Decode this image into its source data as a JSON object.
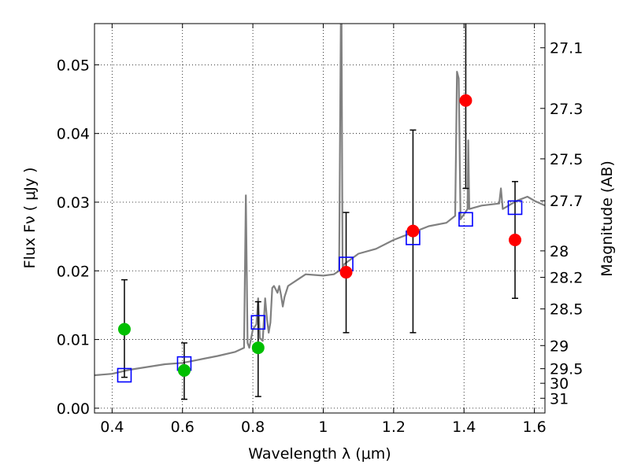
{
  "chart_data": {
    "type": "scatter",
    "xlabel": "Wavelength  λ (μm)",
    "ylabel": "Flux  Fν  ( μJy )",
    "ylabel_right": "Magnitude (AB)",
    "xlim": [
      0.35,
      1.63
    ],
    "ylim": [
      -0.0007,
      0.056
    ],
    "grid": true,
    "x_ticks": [
      0.4,
      0.6,
      0.8,
      1.0,
      1.2,
      1.4,
      1.6
    ],
    "x_tick_labels": [
      "0.4",
      "0.6",
      "0.8",
      "1",
      "1.2",
      "1.4",
      "1.6"
    ],
    "y_ticks": [
      0.0,
      0.01,
      0.02,
      0.03,
      0.04,
      0.05
    ],
    "y_tick_labels": [
      "0.00",
      "0.01",
      "0.02",
      "0.03",
      "0.04",
      "0.05"
    ],
    "right_ticks": [
      27.1,
      27.3,
      27.5,
      27.7,
      28,
      28.2,
      28.5,
      29,
      29.5,
      30,
      31
    ],
    "right_tick_labels": [
      "27.1",
      "27.3",
      "27.5",
      "27.7",
      "28",
      "28.2",
      "28.5",
      "29",
      "29.5",
      "30",
      "31"
    ],
    "series": [
      {
        "name": "model spectrum",
        "kind": "line",
        "color": "#808080",
        "x": [
          0.35,
          0.4,
          0.45,
          0.5,
          0.55,
          0.6,
          0.65,
          0.7,
          0.75,
          0.775,
          0.78,
          0.785,
          0.79,
          0.8,
          0.81,
          0.815,
          0.82,
          0.828,
          0.835,
          0.84,
          0.845,
          0.85,
          0.855,
          0.86,
          0.87,
          0.875,
          0.88,
          0.885,
          0.89,
          0.9,
          0.95,
          1.0,
          1.03,
          1.045,
          1.05,
          1.052,
          1.055,
          1.06,
          1.1,
          1.15,
          1.2,
          1.25,
          1.3,
          1.35,
          1.375,
          1.38,
          1.385,
          1.39,
          1.41,
          1.412,
          1.415,
          1.45,
          1.5,
          1.505,
          1.51,
          1.55,
          1.58,
          1.6,
          1.63
        ],
        "y": [
          0.0048,
          0.005,
          0.0056,
          0.006,
          0.0064,
          0.0066,
          0.0071,
          0.0076,
          0.0082,
          0.0088,
          0.031,
          0.0095,
          0.0088,
          0.0115,
          0.0122,
          0.016,
          0.0102,
          0.0098,
          0.016,
          0.013,
          0.011,
          0.0125,
          0.0175,
          0.0178,
          0.0168,
          0.0178,
          0.0165,
          0.0148,
          0.0162,
          0.0178,
          0.0195,
          0.0193,
          0.0195,
          0.02,
          0.056,
          0.056,
          0.0205,
          0.021,
          0.0225,
          0.0232,
          0.0245,
          0.0255,
          0.0265,
          0.027,
          0.028,
          0.049,
          0.048,
          0.0275,
          0.029,
          0.039,
          0.029,
          0.0295,
          0.0298,
          0.032,
          0.029,
          0.0302,
          0.0308,
          0.0302,
          0.0295
        ]
      },
      {
        "name": "green observations",
        "kind": "errorbar",
        "color": "#00bf00",
        "x": [
          0.435,
          0.605,
          0.815
        ],
        "y": [
          0.0115,
          0.0055,
          0.0088
        ],
        "yerr_low": [
          0.0045,
          0.0013,
          0.0017
        ],
        "yerr_high": [
          0.0187,
          0.0095,
          0.0155
        ]
      },
      {
        "name": "red observations",
        "kind": "errorbar",
        "color": "#ff0000",
        "x": [
          1.065,
          1.255,
          1.405,
          1.545
        ],
        "y": [
          0.0198,
          0.0258,
          0.0448,
          0.0245
        ],
        "yerr_low": [
          0.011,
          0.011,
          0.032,
          0.016
        ],
        "yerr_high": [
          0.0285,
          0.0405,
          0.056,
          0.033
        ]
      },
      {
        "name": "model photometry",
        "kind": "square",
        "color": "#0000ff",
        "x": [
          0.435,
          0.605,
          0.815,
          1.065,
          1.255,
          1.405,
          1.545
        ],
        "y": [
          0.0048,
          0.0065,
          0.0125,
          0.021,
          0.0248,
          0.0275,
          0.0292
        ]
      }
    ]
  }
}
